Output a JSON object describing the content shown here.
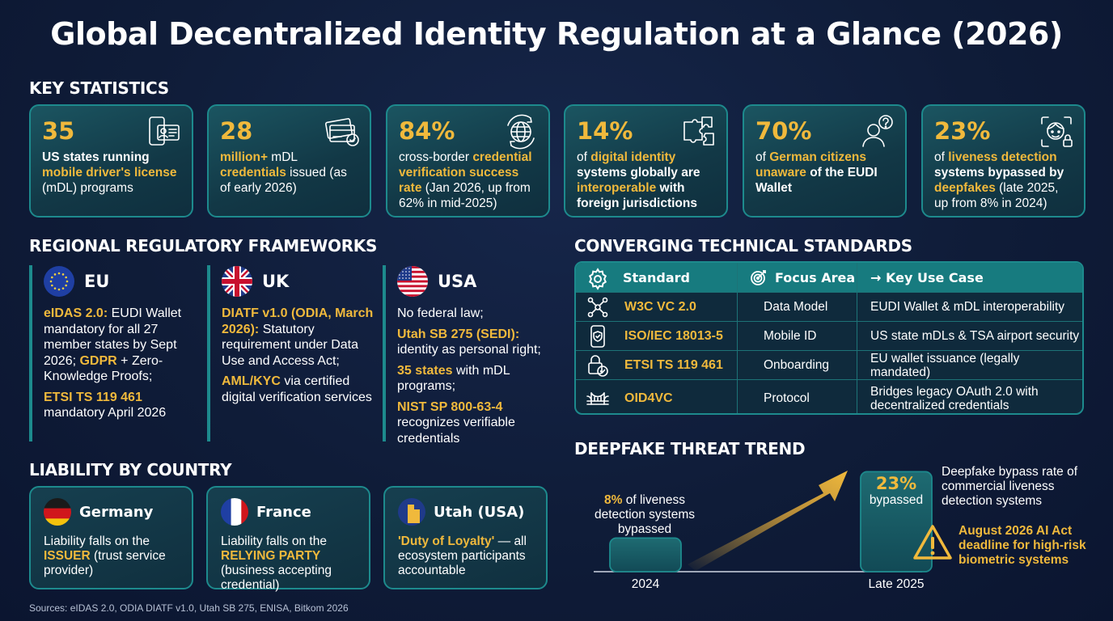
{
  "title": "Global Decentralized Identity Regulation at a Glance (2026)",
  "key_statistics": {
    "heading": "KEY STATISTICS",
    "cards": [
      {
        "value": "35",
        "icon": "phone-id-icon",
        "desc": [
          [
            "US states running",
            true,
            false
          ],
          [
            " ",
            false,
            false
          ],
          [
            "mobile driver's license",
            true,
            true
          ],
          [
            " (mDL) programs",
            false,
            false
          ]
        ]
      },
      {
        "value": "28",
        "icon": "credential-card-icon",
        "desc": [
          [
            "million+",
            true,
            true
          ],
          [
            " mDL ",
            false,
            false
          ],
          [
            "credentials",
            true,
            true
          ],
          [
            " issued ",
            false,
            false
          ],
          [
            "(as of early 2026)",
            false,
            false
          ]
        ]
      },
      {
        "value": "84%",
        "icon": "globe-arrows-icon",
        "desc": [
          [
            "cross-border ",
            false,
            false
          ],
          [
            "credential verification success rate",
            true,
            true
          ],
          [
            " (Jan 2026, up from 62% in mid-2025)",
            false,
            false
          ]
        ]
      },
      {
        "value": "14%",
        "icon": "puzzle-icon",
        "desc": [
          [
            "of ",
            false,
            false
          ],
          [
            "digital identity",
            true,
            true
          ],
          [
            " systems globally are ",
            true,
            false
          ],
          [
            "interoperable",
            true,
            true
          ],
          [
            " with foreign jurisdictions",
            true,
            false
          ]
        ]
      },
      {
        "value": "70%",
        "icon": "person-question-icon",
        "desc": [
          [
            "of ",
            false,
            false
          ],
          [
            "German citizens",
            true,
            true
          ],
          [
            " ",
            false,
            false
          ],
          [
            "unaware",
            true,
            true
          ],
          [
            " of the EUDI Wallet",
            true,
            false
          ]
        ]
      },
      {
        "value": "23%",
        "icon": "face-scan-icon",
        "desc": [
          [
            "of ",
            false,
            false
          ],
          [
            "liveness detection",
            true,
            true
          ],
          [
            " systems bypassed by ",
            true,
            false
          ],
          [
            "deepfakes",
            true,
            true
          ],
          [
            " (late 2025, up from 8% in 2024)",
            false,
            false
          ]
        ]
      }
    ]
  },
  "regional": {
    "heading": "REGIONAL REGULATORY FRAMEWORKS",
    "regions": [
      {
        "name": "EU",
        "flag": "eu-flag-icon",
        "paras": [
          [
            [
              "eIDAS 2.0:",
              true
            ],
            [
              " EUDI Wallet mandatory for all 27 member states by Sept 2026; ",
              false
            ],
            [
              "GDPR",
              true
            ],
            [
              " + Zero-Knowledge Proofs;",
              false
            ]
          ],
          [
            [
              "ETSI TS 119 461",
              true
            ],
            [
              " mandatory April 2026",
              false
            ]
          ]
        ]
      },
      {
        "name": "UK",
        "flag": "uk-flag-icon",
        "paras": [
          [
            [
              "DIATF v1.0 (ODIA, March 2026):",
              true
            ],
            [
              " Statutory requirement under Data Use and Access Act;",
              false
            ]
          ],
          [
            [
              "AML/KYC",
              true
            ],
            [
              " via certified digital verification services",
              false
            ]
          ]
        ]
      },
      {
        "name": "USA",
        "flag": "usa-flag-icon",
        "paras": [
          [
            [
              "No federal law;",
              false
            ]
          ],
          [
            [
              "Utah SB 275 (SEDI):",
              true
            ],
            [
              " identity as personal right;",
              false
            ]
          ],
          [
            [
              "35 states",
              true
            ],
            [
              " with mDL programs;",
              false
            ]
          ],
          [
            [
              "NIST SP 800-63-4",
              true
            ],
            [
              " recognizes verifiable credentials",
              false
            ]
          ]
        ]
      }
    ]
  },
  "liability": {
    "heading": "LIABILITY BY COUNTRY",
    "countries": [
      {
        "name": "Germany",
        "flag": "germany-flag-icon",
        "text": [
          [
            "Liability falls on the ",
            false
          ],
          [
            "ISSUER",
            true
          ],
          [
            " (trust service provider)",
            false
          ]
        ]
      },
      {
        "name": "France",
        "flag": "france-flag-icon",
        "text": [
          [
            "Liability falls on the ",
            false
          ],
          [
            "RELYING PARTY",
            true
          ],
          [
            " (business accepting credential)",
            false
          ]
        ]
      },
      {
        "name": "Utah (USA)",
        "flag": "utah-map-icon",
        "text": [
          [
            "'Duty of Loyalty'",
            true
          ],
          [
            " — all ecosystem participants accountable",
            false
          ]
        ]
      }
    ]
  },
  "standards": {
    "heading": "CONVERGING TECHNICAL STANDARDS",
    "columns": [
      "Standard",
      "Focus Area",
      "→ Key Use Case"
    ],
    "rows": [
      {
        "standard": "W3C VC 2.0",
        "focus": "Data Model",
        "use_case": "EUDI Wallet & mDL interoperability",
        "icon": "network-nodes-icon"
      },
      {
        "standard": "ISO/IEC 18013-5",
        "focus": "Mobile ID",
        "use_case": "US state mDLs & TSA airport security",
        "icon": "mobile-shield-icon"
      },
      {
        "standard": "ETSI TS 119 461",
        "focus": "Onboarding",
        "use_case": "EU wallet issuance (legally mandated)",
        "icon": "lock-check-icon"
      },
      {
        "standard": "OID4VC",
        "focus": "Protocol",
        "use_case": "Bridges legacy OAuth 2.0 with decentralized credentials",
        "icon": "bridge-icon"
      }
    ]
  },
  "deepfake": {
    "heading": "DEEPFAKE THREAT TREND",
    "bar_2024": {
      "label": "2024",
      "value_text": "8%",
      "caption": " of liveness detection systems bypassed"
    },
    "bar_2025": {
      "label": "Late 2025",
      "value_text": "23%",
      "caption": "bypassed"
    },
    "side_note": "Deepfake bypass rate of commercial liveness detection systems",
    "warning": "August 2026 AI Act deadline for high-risk biometric systems"
  },
  "chart_data": {
    "type": "bar",
    "categories": [
      "2024",
      "Late 2025"
    ],
    "values": [
      8,
      23
    ],
    "title": "DEEPFAKE THREAT TREND",
    "xlabel": "",
    "ylabel": "",
    "ylim": [
      0,
      25
    ]
  },
  "sources": "Sources: eIDAS 2.0, ODIA DIATF v1.0, Utah SB 275, ENISA, Bitkom 2026",
  "colors": {
    "accent": "#f0b93c",
    "teal": "#1d8a8d",
    "background": "#0f1c38"
  }
}
